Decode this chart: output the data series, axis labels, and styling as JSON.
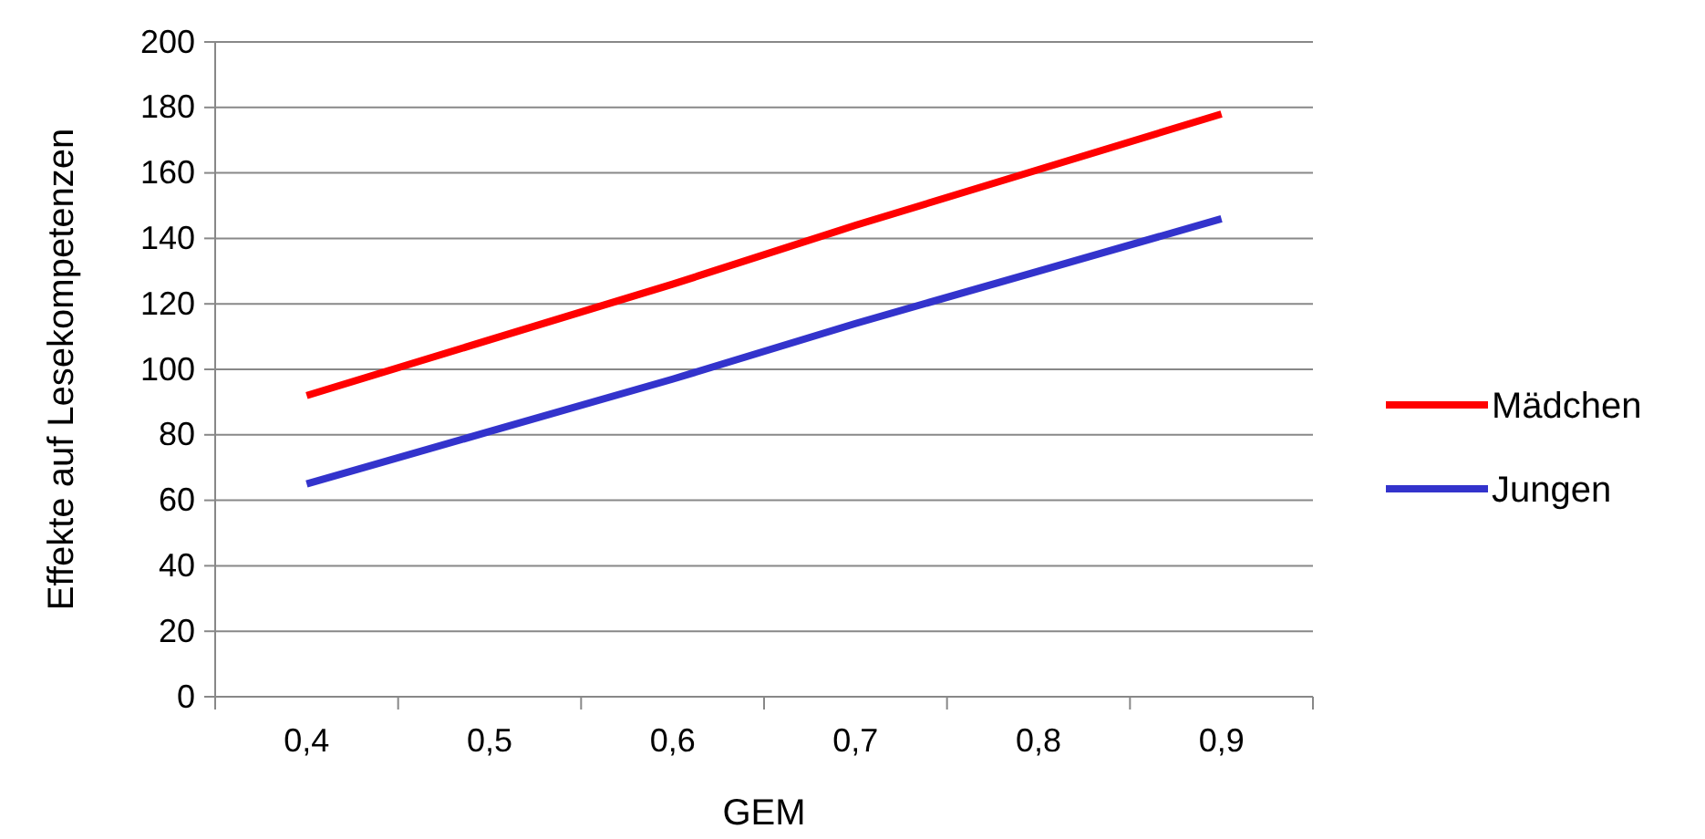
{
  "chart_data": {
    "type": "line",
    "xlabel": "GEM",
    "ylabel": "Effekte auf Lesekompetenzen",
    "categories": [
      "0,4",
      "0,5",
      "0,6",
      "0,7",
      "0,8",
      "0,9"
    ],
    "series": [
      {
        "name": "Mädchen",
        "color": "#ff0000",
        "values": [
          92,
          109,
          126,
          144,
          161,
          178
        ]
      },
      {
        "name": "Jungen",
        "color": "#3333cc",
        "values": [
          65,
          81,
          97,
          114,
          130,
          146
        ]
      }
    ],
    "ylim": [
      0,
      200
    ],
    "yticks": [
      0,
      20,
      40,
      60,
      80,
      100,
      120,
      140,
      160,
      180,
      200
    ],
    "grid": "y",
    "legend": "right",
    "marker": "none",
    "line_style": "solid"
  }
}
